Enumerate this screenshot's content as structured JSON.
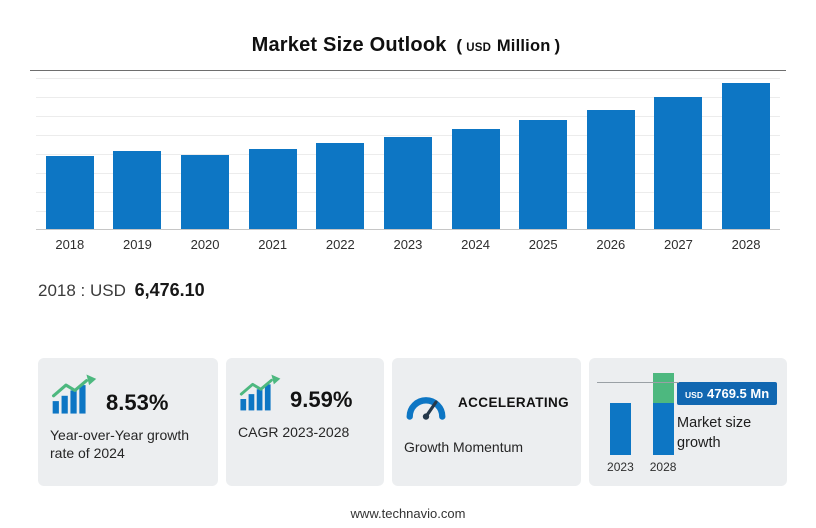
{
  "title": {
    "main": "Market Size Outlook",
    "open_paren": "(",
    "currency": "USD",
    "unit": "Million",
    "close_paren": ")"
  },
  "chart_data": {
    "type": "bar",
    "title": "Market Size Outlook (USD Million)",
    "categories": [
      "2018",
      "2019",
      "2020",
      "2021",
      "2022",
      "2023",
      "2024",
      "2025",
      "2026",
      "2027",
      "2028"
    ],
    "values": [
      6476.1,
      6940,
      6590,
      7090,
      7620,
      8201.6,
      8901.2,
      9680,
      10560,
      11700,
      12971.1
    ],
    "xlabel": "",
    "ylabel": "USD Million",
    "ylim": [
      0,
      13500
    ],
    "grid": true,
    "legend": false,
    "bar_color": "#0d76c4",
    "annotations": [
      "2018 : USD 6,476.10"
    ]
  },
  "annotation": {
    "prefix": "2018 : USD",
    "value": "6,476.10"
  },
  "cards": [
    {
      "icon": "growth-bars-arrow-icon",
      "value": "8.53%",
      "label": "Year-over-Year growth rate of 2024"
    },
    {
      "icon": "growth-bars-arrow-icon",
      "value": "9.59%",
      "label": "CAGR 2023-2028"
    },
    {
      "icon": "gauge-icon",
      "value": "ACCELERATING",
      "label": "Growth Momentum"
    },
    {
      "icon": "mini-bar-chart",
      "badge_currency": "USD",
      "badge_value": "4769.5 Mn",
      "label": "Market size growth",
      "start_year": "2023",
      "end_year": "2028"
    }
  ],
  "footer": {
    "url": "www.technavio.com"
  },
  "colors": {
    "bar_blue": "#0d76c4",
    "growth_green": "#4db87f",
    "badge_blue": "#1167b1",
    "card_bg": "#eceef0"
  }
}
